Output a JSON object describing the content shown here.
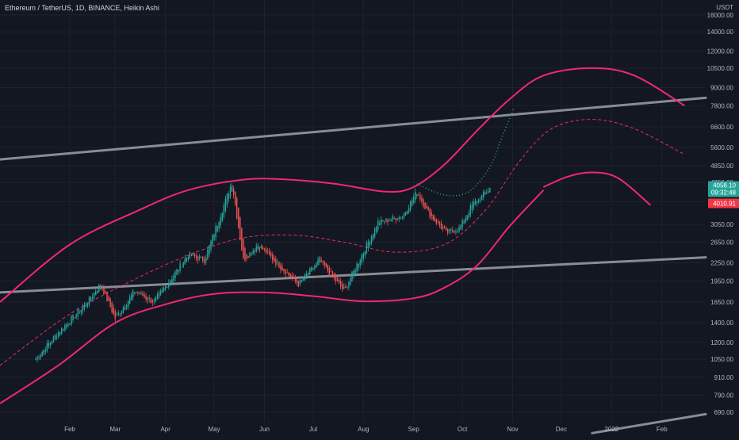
{
  "header": {
    "symbol_line": "Ethereum / TetherUS, 1D, BINANCE, Heikin Ashi",
    "currency": "USDT"
  },
  "colors": {
    "background": "#131722",
    "grid": "#1e222d",
    "up_candle": "#26a69a",
    "down_candle": "#ef5350",
    "curve": "#f0286e",
    "channel": "#8a8c94",
    "projection_dots": "#26a69a",
    "price_tag": "#26a69a",
    "alt_tag": "#f23645"
  },
  "chart_data": {
    "type": "candlestick",
    "title": "",
    "yscale": "log",
    "ylim": [
      640,
      18000
    ],
    "y_ticks": [
      "16000.00",
      "14000.00",
      "12000.00",
      "10500.00",
      "9000.00",
      "7800.00",
      "6600.00",
      "5600.00",
      "4850.00",
      "4250.00",
      "3650.00",
      "3050.00",
      "2650.00",
      "2250.00",
      "1950.00",
      "1650.00",
      "1400.00",
      "1200.00",
      "1050.00",
      "910.00",
      "790.00",
      "690.00"
    ],
    "x_ticks": [
      "Feb",
      "Mar",
      "Apr",
      "May",
      "Jun",
      "Jul",
      "Aug",
      "Sep",
      "Oct",
      "Nov",
      "Dec",
      "2022",
      "Feb"
    ],
    "last_price": "4058.10",
    "countdown": "09:32:48",
    "second_label": "4010.91",
    "anchors": {
      "dates": [
        "2021-01-11",
        "2021-01-25",
        "2021-02-10",
        "2021-02-20",
        "2021-03-01",
        "2021-03-13",
        "2021-03-25",
        "2021-04-15",
        "2021-04-25",
        "2021-05-12",
        "2021-05-19",
        "2021-05-28",
        "2021-06-22",
        "2021-07-05",
        "2021-07-20",
        "2021-08-10",
        "2021-08-25",
        "2021-09-03",
        "2021-09-10",
        "2021-09-21",
        "2021-09-29",
        "2021-10-07",
        "2021-10-18"
      ],
      "prices": [
        1050,
        1300,
        1600,
        1900,
        1450,
        1800,
        1650,
        2400,
        2300,
        4250,
        2300,
        2600,
        1900,
        2300,
        1800,
        3100,
        3250,
        3950,
        3350,
        2850,
        2950,
        3550,
        4050
      ]
    },
    "curves": {
      "upper_band": {
        "dates": [
          "2020-12-20",
          "2021-02-01",
          "2021-03-15",
          "2021-04-15",
          "2021-05-20",
          "2021-06-15",
          "2021-07-15",
          "2021-08-15",
          "2021-09-01",
          "2021-09-20",
          "2021-10-10",
          "2021-10-30",
          "2021-11-20",
          "2021-12-20",
          "2022-01-15",
          "2022-02-15"
        ],
        "prices": [
          1650,
          2600,
          3400,
          4000,
          4350,
          4350,
          4200,
          3950,
          4100,
          4900,
          6400,
          8200,
          9900,
          10500,
          9900,
          7800
        ]
      },
      "lower_band": {
        "dates": [
          "2020-12-20",
          "2021-01-25",
          "2021-03-01",
          "2021-04-01",
          "2021-05-01",
          "2021-06-01",
          "2021-07-01",
          "2021-08-01",
          "2021-09-01",
          "2021-09-20",
          "2021-10-10",
          "2021-10-30",
          "2021-11-20"
        ],
        "prices": [
          740,
          1000,
          1400,
          1620,
          1760,
          1780,
          1730,
          1660,
          1700,
          1850,
          2200,
          3000,
          4000
        ]
      },
      "inner_band": {
        "dates": [
          "2021-11-20",
          "2021-12-05",
          "2021-12-20",
          "2022-01-05",
          "2022-01-25"
        ],
        "prices": [
          4100,
          4450,
          4600,
          4400,
          3550
        ]
      },
      "dashed_mid": {
        "dates": [
          "2020-12-20",
          "2021-02-01",
          "2021-03-15",
          "2021-04-20",
          "2021-05-20",
          "2021-06-20",
          "2021-07-20",
          "2021-08-20",
          "2021-09-20",
          "2021-10-15",
          "2021-11-05",
          "2021-11-25",
          "2021-12-20",
          "2022-01-15",
          "2022-02-15"
        ],
        "prices": [
          1000,
          1500,
          2000,
          2450,
          2750,
          2800,
          2650,
          2450,
          2600,
          3400,
          5000,
          6500,
          7000,
          6500,
          5300
        ]
      },
      "projection": {
        "dates": [
          "2021-09-03",
          "2021-09-20",
          "2021-10-05",
          "2021-10-18",
          "2021-10-25",
          "2021-11-02"
        ],
        "prices": [
          4200,
          3850,
          3950,
          4800,
          6000,
          7700
        ]
      },
      "upper_channel": {
        "dates": [
          "2020-12-20",
          "2022-02-28"
        ],
        "prices": [
          5100,
          8300
        ]
      },
      "lower_channel": {
        "dates": [
          "2020-12-20",
          "2022-02-28"
        ],
        "prices": [
          1780,
          2350
        ]
      },
      "bottom_channel": {
        "dates": [
          "2021-12-20",
          "2022-02-28"
        ],
        "prices": [
          585,
          680
        ]
      }
    }
  }
}
